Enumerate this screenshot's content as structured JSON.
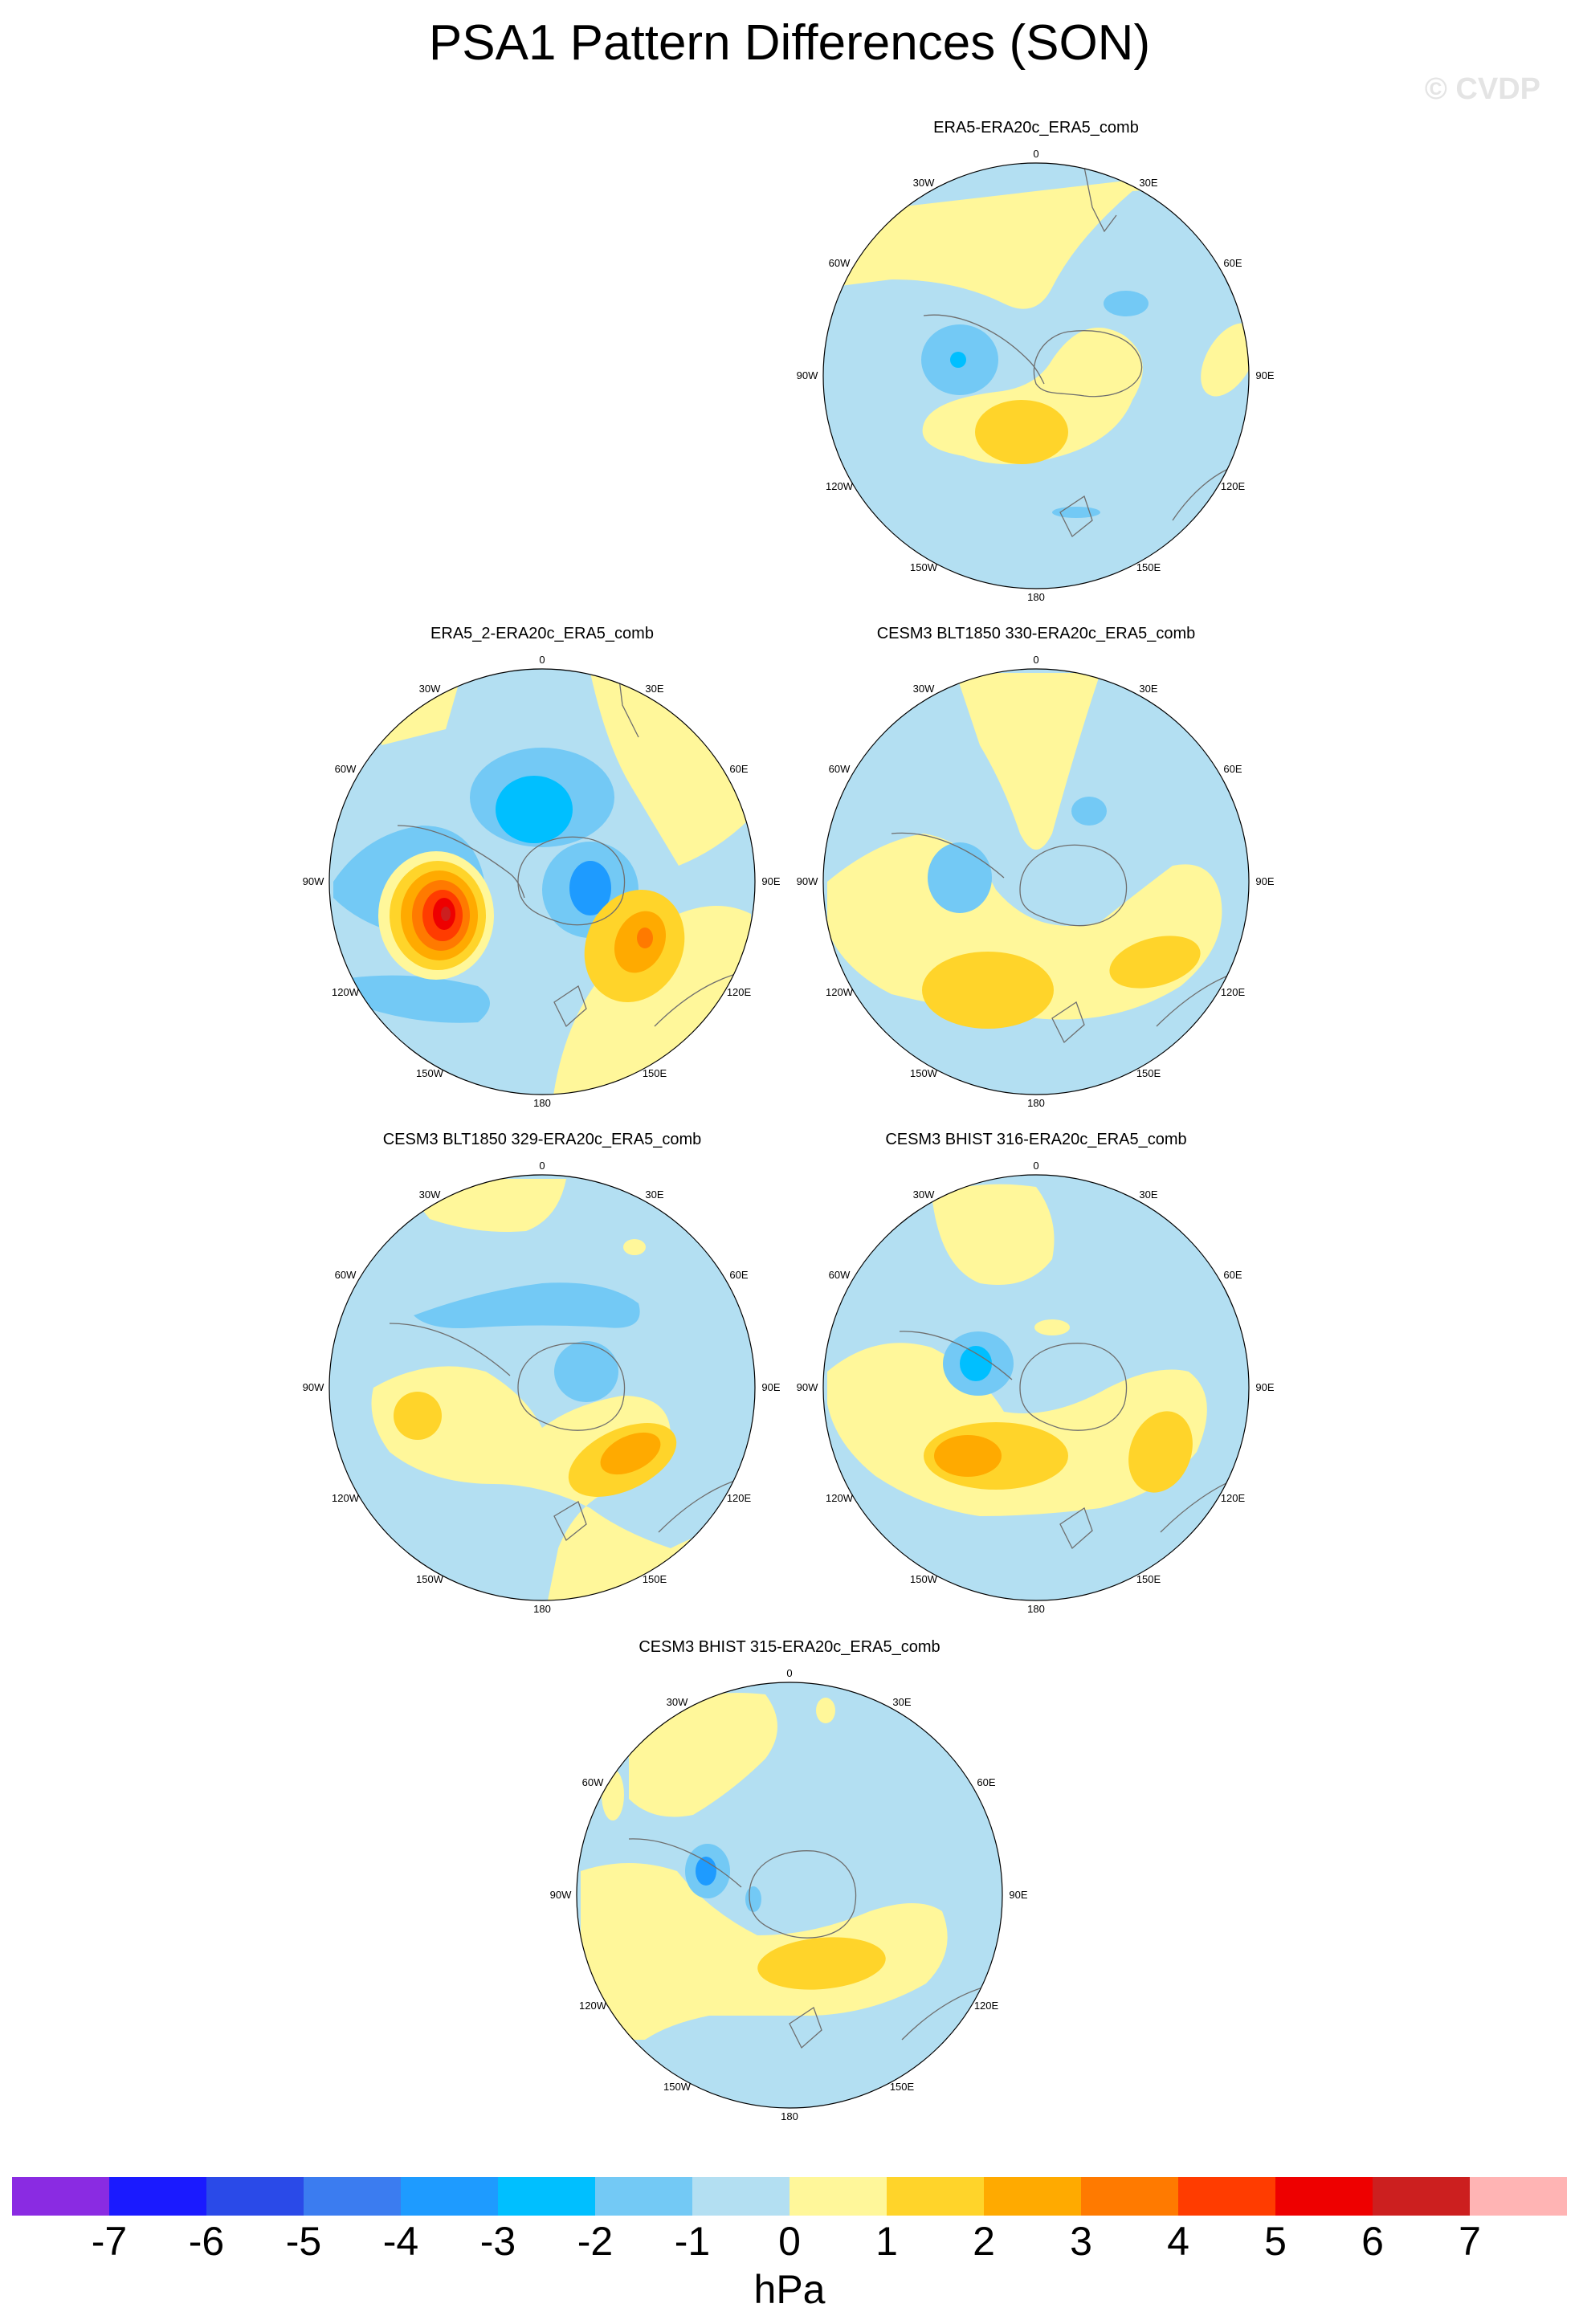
{
  "title": "PSA1 Pattern Differences (SON)",
  "watermark": "© CVDP",
  "longitude_labels": {
    "n": "0",
    "ne": "30E",
    "ene": "60E",
    "e": "90E",
    "ese": "120E",
    "sse": "150E",
    "s": "180",
    "ssw": "150W",
    "wsw": "120W",
    "w": "90W",
    "wnw": "60W",
    "nnw": "30W"
  },
  "panels": [
    {
      "title": "ERA5-ERA20c_ERA5_comb"
    },
    {
      "title": "ERA5_2-ERA20c_ERA5_comb"
    },
    {
      "title": "CESM3 BLT1850 330-ERA20c_ERA5_comb"
    },
    {
      "title": "CESM3 BLT1850 329-ERA20c_ERA5_comb"
    },
    {
      "title": "CESM3 BHIST 316-ERA20c_ERA5_comb"
    },
    {
      "title": "CESM3 BHIST 315-ERA20c_ERA5_comb"
    }
  ],
  "colorbar": {
    "units": "hPa",
    "ticks": [
      "-7",
      "-6",
      "-5",
      "-4",
      "-3",
      "-2",
      "-1",
      "0",
      "1",
      "2",
      "3",
      "4",
      "5",
      "6",
      "7"
    ],
    "colors": [
      "#8a2be2",
      "#1a1aff",
      "#2a4ae8",
      "#3b7cf0",
      "#1e9bff",
      "#00bfff",
      "#73c9f5",
      "#b3dff2",
      "#fff79a",
      "#ffd42a",
      "#ffaa00",
      "#ff7a00",
      "#ff3c00",
      "#ee0000",
      "#cc1f1f",
      "#ffb4b4"
    ]
  }
}
